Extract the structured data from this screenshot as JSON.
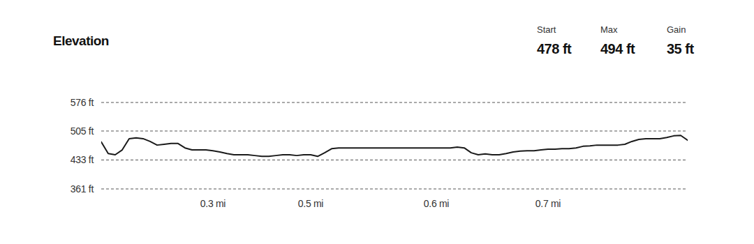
{
  "chart_data": {
    "type": "line",
    "title": "Elevation",
    "stats": [
      {
        "label": "Start",
        "value": "478 ft"
      },
      {
        "label": "Max",
        "value": "494 ft"
      },
      {
        "label": "Gain",
        "value": "35 ft"
      }
    ],
    "categories": [
      null,
      null,
      null,
      null,
      null,
      null,
      null,
      null,
      null,
      null,
      null,
      null,
      null,
      null,
      null,
      null,
      "0.3 mi",
      null,
      null,
      null,
      null,
      null,
      null,
      null,
      null,
      null,
      null,
      null,
      null,
      null,
      "0.5 mi",
      null,
      null,
      null,
      null,
      null,
      null,
      null,
      null,
      null,
      null,
      null,
      null,
      null,
      null,
      null,
      null,
      null,
      "0.6 mi",
      null,
      null,
      null,
      null,
      null,
      null,
      null,
      null,
      null,
      null,
      null,
      null,
      null,
      null,
      null,
      "0.7 mi",
      null,
      null,
      null,
      null,
      null,
      null,
      null,
      null,
      null,
      null,
      null,
      null,
      null,
      null,
      null,
      null,
      null,
      null,
      null,
      null
    ],
    "values": [
      478,
      449,
      446,
      458,
      486,
      488,
      486,
      479,
      470,
      472,
      474,
      474,
      463,
      458,
      458,
      458,
      456,
      453,
      449,
      446,
      446,
      446,
      444,
      442,
      442,
      444,
      446,
      446,
      444,
      446,
      446,
      442,
      451,
      461,
      463,
      463,
      463,
      463,
      463,
      463,
      463,
      463,
      463,
      463,
      463,
      463,
      463,
      463,
      463,
      463,
      463,
      465,
      463,
      451,
      446,
      448,
      446,
      446,
      449,
      453,
      455,
      456,
      456,
      458,
      460,
      460,
      461,
      461,
      463,
      467,
      468,
      470,
      470,
      470,
      470,
      472,
      479,
      484,
      486,
      486,
      486,
      489,
      493,
      494,
      482
    ],
    "color": "#1a1a1a",
    "ylim": [
      361,
      576
    ],
    "yticks": [
      {
        "value": 361,
        "label": "361 ft"
      },
      {
        "value": 433,
        "label": "433 ft"
      },
      {
        "value": 505,
        "label": "505 ft"
      },
      {
        "value": 576,
        "label": "576 ft"
      }
    ],
    "grid": true,
    "line_style": "solid"
  }
}
